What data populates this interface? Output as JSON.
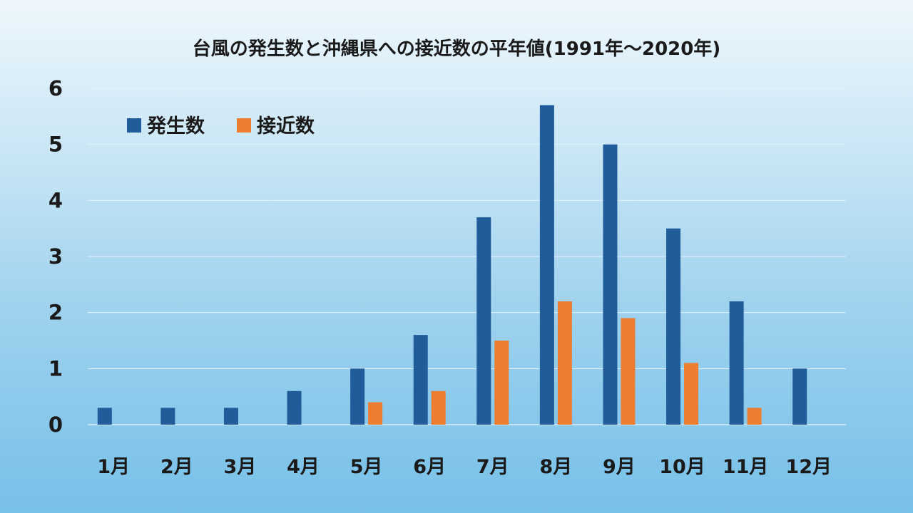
{
  "chart_data": {
    "type": "bar",
    "title": "台風の発生数と沖縄県への接近数の平年値(1991年～2020年)",
    "xlabel": "",
    "ylabel": "",
    "categories": [
      "1月",
      "2月",
      "3月",
      "4月",
      "5月",
      "6月",
      "7月",
      "8月",
      "9月",
      "10月",
      "11月",
      "12月"
    ],
    "series": [
      {
        "name": "発生数",
        "color": "#1f5c99",
        "values": [
          0.3,
          0.3,
          0.3,
          0.6,
          1.0,
          1.6,
          3.7,
          5.7,
          5.0,
          3.5,
          2.2,
          1.0
        ]
      },
      {
        "name": "接近数",
        "color": "#ed7d31",
        "values": [
          0,
          0,
          0,
          0,
          0.4,
          0.6,
          1.5,
          2.2,
          1.9,
          1.1,
          0.3,
          0
        ]
      }
    ],
    "ylim": [
      0,
      6
    ],
    "yticks": [
      "0",
      "1",
      "2",
      "3",
      "4",
      "5",
      "6"
    ],
    "grid": true,
    "legend_position": "top-left"
  }
}
